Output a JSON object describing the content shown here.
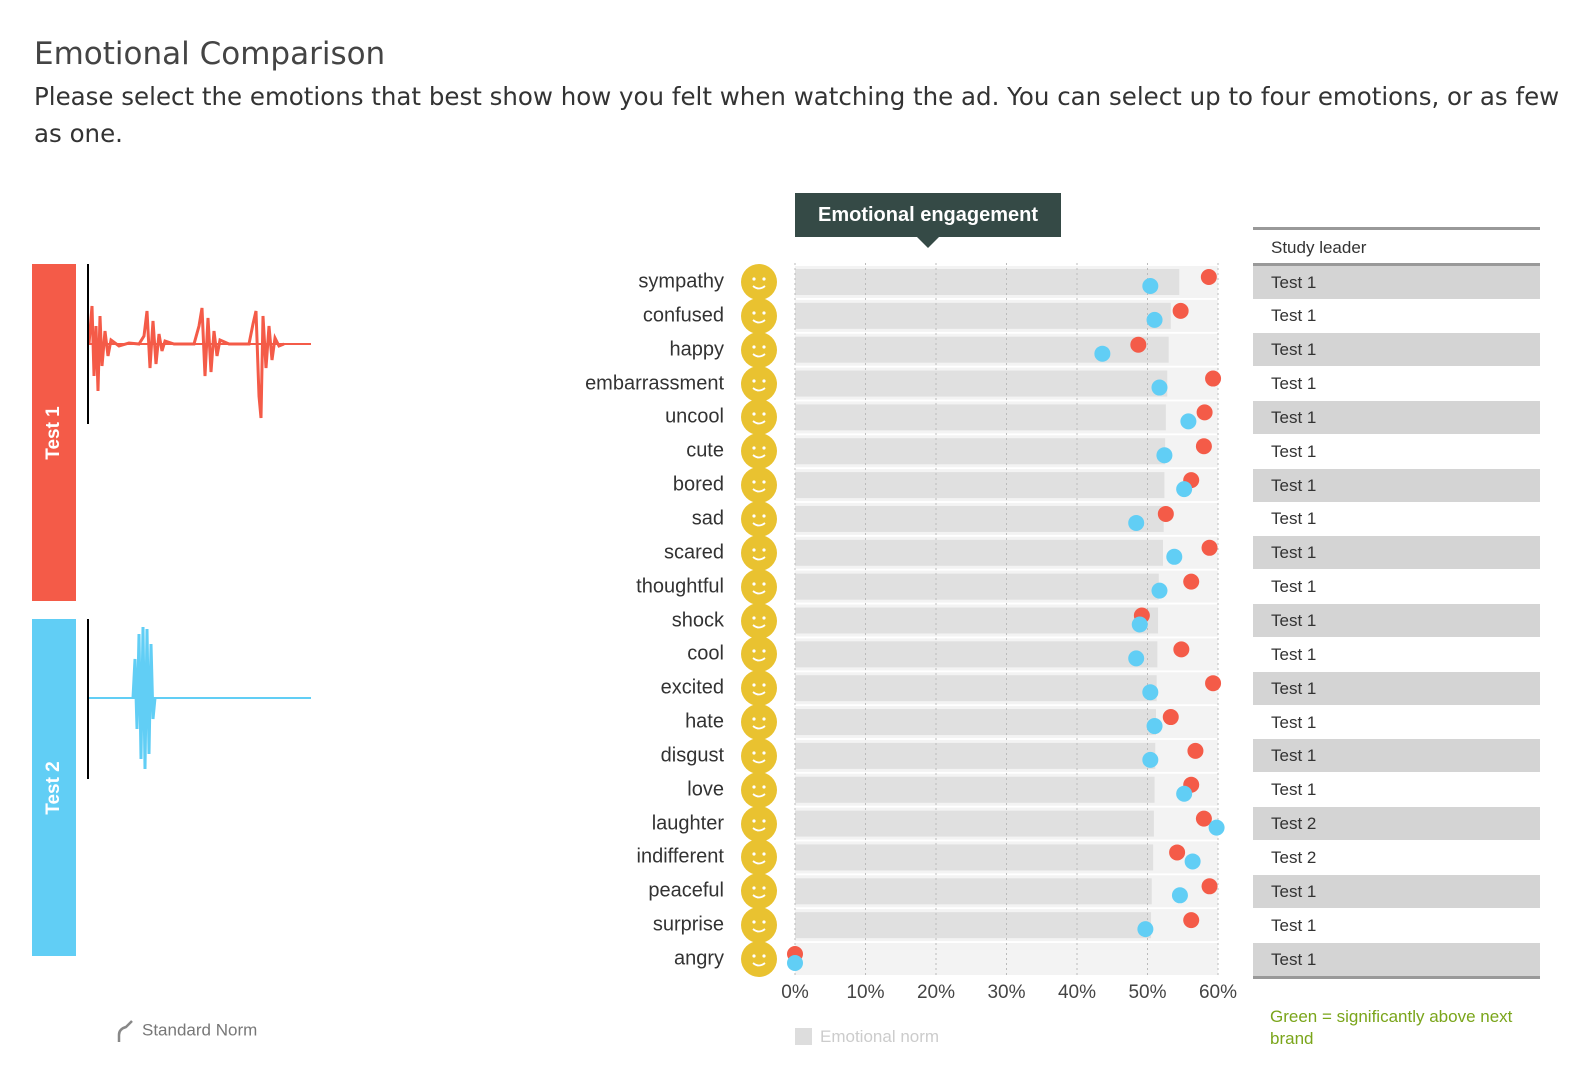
{
  "page": {
    "title": "Emotional Comparison",
    "subtitle": "Please select the emotions that best show how you felt when watching the ad. You can select up to four emotions, or as few as one."
  },
  "tests": [
    {
      "label": "Test 1",
      "color": "#f45b48"
    },
    {
      "label": "Test 2",
      "color": "#61cef5"
    }
  ],
  "legends": {
    "standard_norm": "Standard Norm",
    "emotional_norm": "Emotional norm",
    "green_note": "Green = significantly above next brand"
  },
  "chart_data": {
    "type": "scatter",
    "title": "Emotional engagement",
    "xlim": [
      0,
      60
    ],
    "x_ticks": [
      "0%",
      "10%",
      "20%",
      "30%",
      "40%",
      "50%",
      "60%"
    ],
    "grid": true,
    "categories": [
      "sympathy",
      "confused",
      "happy",
      "embarrassment",
      "uncool",
      "cute",
      "bored",
      "sad",
      "scared",
      "thoughtful",
      "shock",
      "cool",
      "excited",
      "hate",
      "disgust",
      "love",
      "laughter",
      "indifferent",
      "peaceful",
      "surprise",
      "angry"
    ],
    "norm_values": [
      54.5,
      53.3,
      53,
      52.8,
      52.6,
      52.5,
      52.4,
      52.3,
      52.2,
      51.6,
      51.5,
      51.4,
      51.3,
      51.2,
      51.1,
      51,
      50.9,
      50.8,
      50.6,
      50.5,
      0
    ],
    "series": [
      {
        "name": "Test 1",
        "color": "#f45b48",
        "values": [
          58.7,
          54.7,
          48.7,
          59.3,
          58.1,
          58.0,
          56.2,
          52.6,
          58.8,
          56.2,
          49.2,
          54.8,
          59.3,
          53.3,
          56.8,
          56.2,
          58.0,
          54.2,
          58.8,
          56.2,
          0
        ]
      },
      {
        "name": "Test 2",
        "color": "#61cef5",
        "values": [
          50.4,
          51.0,
          43.6,
          51.7,
          55.8,
          52.4,
          55.2,
          48.4,
          53.8,
          51.7,
          48.9,
          48.4,
          50.4,
          51.0,
          50.4,
          55.2,
          59.8,
          56.4,
          54.6,
          49.7,
          0
        ]
      }
    ]
  },
  "study_leader": {
    "header": "Study leader",
    "rows": [
      "Test 1",
      "Test 1",
      "Test 1",
      "Test 1",
      "Test 1",
      "Test 1",
      "Test 1",
      "Test 1",
      "Test 1",
      "Test 1",
      "Test 1",
      "Test 1",
      "Test 1",
      "Test 1",
      "Test 1",
      "Test 1",
      "Test 2",
      "Test 2",
      "Test 1",
      "Test 1",
      "Test 1"
    ]
  }
}
